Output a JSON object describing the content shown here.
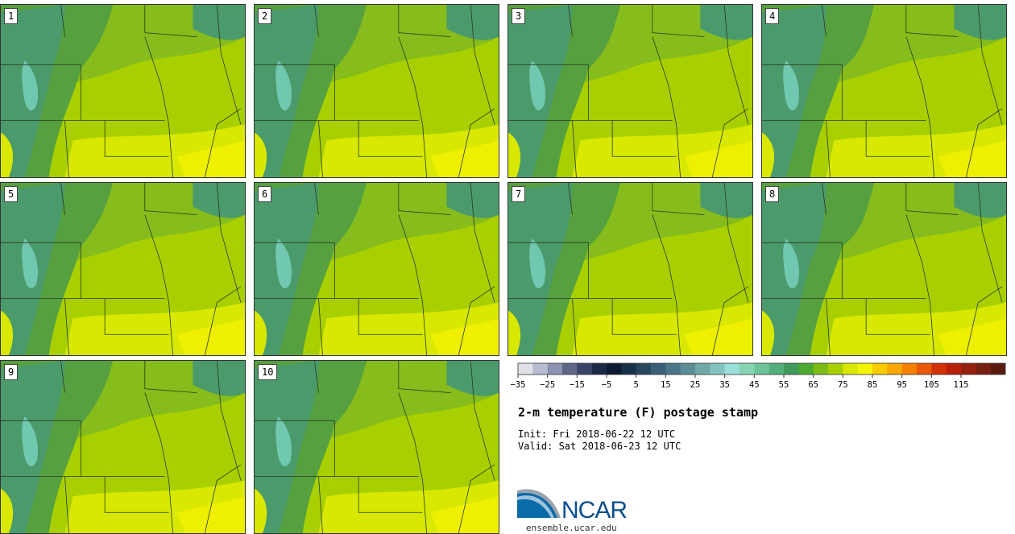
{
  "members": [
    {
      "label": "1"
    },
    {
      "label": "2"
    },
    {
      "label": "3"
    },
    {
      "label": "4"
    },
    {
      "label": "5"
    },
    {
      "label": "6"
    },
    {
      "label": "7"
    },
    {
      "label": "8"
    },
    {
      "label": "9"
    },
    {
      "label": "10"
    }
  ],
  "colorbar": {
    "colors": [
      "#e0e0e8",
      "#b8bcd0",
      "#8c92b0",
      "#5e6688",
      "#3a4468",
      "#1c2848",
      "#0e1a34",
      "#18304a",
      "#28465e",
      "#3a5e78",
      "#4a7688",
      "#5c8e98",
      "#70a8a8",
      "#84c4c0",
      "#98e0d8",
      "#86d4b4",
      "#6cc498",
      "#54b07c",
      "#409a5c",
      "#4caa30",
      "#7cbc14",
      "#a8d000",
      "#d8e800",
      "#f4f400",
      "#f8cc00",
      "#f8a800",
      "#f48000",
      "#e85808",
      "#d43008",
      "#b82008",
      "#962010",
      "#782010",
      "#5a1a10"
    ],
    "tick_labels": [
      "−35",
      "−25",
      "−15",
      "−5",
      "5",
      "15",
      "25",
      "35",
      "45",
      "55",
      "65",
      "75",
      "85",
      "95",
      "105",
      "115"
    ]
  },
  "title": "2-m temperature (F) postage stamp",
  "init": "Init: Fri 2018-06-22 12 UTC",
  "valid": "Valid: Sat 2018-06-23 12 UTC",
  "logo": {
    "text": "NCAR",
    "site": "ensemble.ucar.edu",
    "blue": "#0b6aa8",
    "gray": "#9aa4ae"
  },
  "map_colors": {
    "cold": "#70c8b0",
    "teal": "#4a9a6c",
    "green": "#56a040",
    "mid": "#86bc1c",
    "light": "#a8d000",
    "warm": "#d8e800",
    "hot": "#eef000"
  }
}
